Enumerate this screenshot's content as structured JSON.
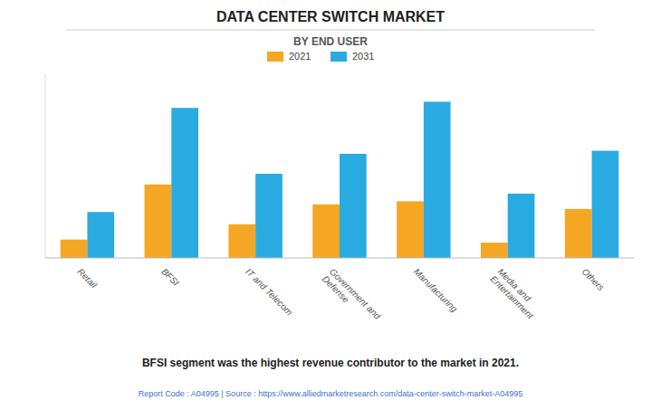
{
  "chart_data": {
    "type": "bar",
    "title": "DATA CENTER SWITCH MARKET",
    "subtitle": "BY END USER",
    "categories": [
      "Retail",
      "BFSI",
      "IT and Telecom",
      "Government and\nDefense",
      "Manufacturing",
      "Media and\nEntertainment",
      "Others"
    ],
    "series": [
      {
        "name": "2021",
        "color": "#F5A623",
        "values": [
          1.2,
          4.8,
          2.2,
          3.5,
          3.7,
          1.0,
          3.2
        ]
      },
      {
        "name": "2031",
        "color": "#29ABE2",
        "values": [
          3.0,
          9.8,
          5.5,
          6.8,
          10.2,
          4.2,
          7.0
        ]
      }
    ],
    "ylim": [
      0,
      12
    ],
    "grid": false,
    "legend": "top",
    "tick_labels": "x",
    "annotation": "BFSI segment was the highest revenue contributor to the market in 2021.",
    "footer": "Report Code : A04995  |  Source : https://www.alliedmarketresearch.com/data-center-switch-market-A04995"
  }
}
